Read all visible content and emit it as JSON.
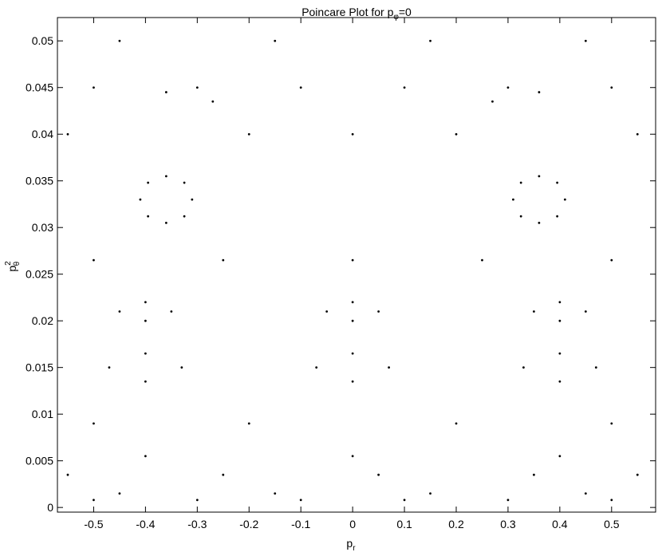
{
  "chart_data": {
    "type": "scatter",
    "title": {
      "text": "Poincare Plot for p",
      "sub": "φ",
      "tail": "=0"
    },
    "xlabel": {
      "base": "p",
      "sub": "r"
    },
    "ylabel": {
      "base": "p",
      "sup": "2",
      "sub": "θ"
    },
    "color": "#000000",
    "xlim": [
      -0.57,
      0.585
    ],
    "ylim": [
      -0.0005,
      0.0525
    ],
    "xticks": [
      -0.5,
      -0.4,
      -0.3,
      -0.2,
      -0.1,
      0,
      0.1,
      0.2,
      0.3,
      0.4,
      0.5
    ],
    "yticks": [
      0,
      0.005,
      0.01,
      0.015,
      0.02,
      0.025,
      0.03,
      0.035,
      0.04,
      0.045,
      0.05
    ],
    "x": [
      -0.31,
      -0.325,
      -0.36,
      -0.395,
      -0.41,
      -0.395,
      -0.36,
      -0.325,
      0.41,
      0.395,
      0.36,
      0.325,
      0.31,
      0.325,
      0.36,
      0.395,
      -0.45,
      -0.4,
      -0.35,
      -0.4,
      -0.05,
      0,
      0.05,
      0,
      0.35,
      0.4,
      0.45,
      0.4,
      -0.47,
      -0.4,
      -0.33,
      -0.4,
      -0.07,
      0,
      0.07,
      0,
      0.33,
      0.4,
      0.47,
      0.4,
      -0.5,
      -0.3,
      -0.1,
      0.1,
      0.3,
      0.5,
      -0.45,
      -0.15,
      0.15,
      0.45,
      -0.55,
      -0.25,
      0.05,
      0.35,
      0.55,
      -0.4,
      0,
      0.4,
      -0.5,
      -0.2,
      0.2,
      0.5,
      -0.5,
      -0.25,
      0,
      0.25,
      0.5,
      -0.5,
      -0.3,
      -0.1,
      0.1,
      0.3,
      0.5,
      -0.55,
      -0.2,
      0,
      0.2,
      0.55,
      -0.45,
      -0.15,
      0.15,
      0.45,
      -0.27,
      0.27,
      -0.36,
      0.36
    ],
    "y": [
      0.033,
      0.0348,
      0.0355,
      0.0348,
      0.033,
      0.0312,
      0.0305,
      0.0312,
      0.033,
      0.0348,
      0.0355,
      0.0348,
      0.033,
      0.0312,
      0.0305,
      0.0312,
      0.021,
      0.022,
      0.021,
      0.02,
      0.021,
      0.022,
      0.021,
      0.02,
      0.021,
      0.022,
      0.021,
      0.02,
      0.015,
      0.0165,
      0.015,
      0.0135,
      0.015,
      0.0165,
      0.015,
      0.0135,
      0.015,
      0.0165,
      0.015,
      0.0135,
      0.0008,
      0.0008,
      0.0008,
      0.0008,
      0.0008,
      0.0008,
      0.0015,
      0.0015,
      0.0015,
      0.0015,
      0.0035,
      0.0035,
      0.0035,
      0.0035,
      0.0035,
      0.0055,
      0.0055,
      0.0055,
      0.009,
      0.009,
      0.009,
      0.009,
      0.0265,
      0.0265,
      0.0265,
      0.0265,
      0.0265,
      0.045,
      0.045,
      0.045,
      0.045,
      0.045,
      0.045,
      0.04,
      0.04,
      0.04,
      0.04,
      0.04,
      0.05,
      0.05,
      0.05,
      0.05,
      0.0435,
      0.0435,
      0.0445,
      0.0445
    ]
  }
}
